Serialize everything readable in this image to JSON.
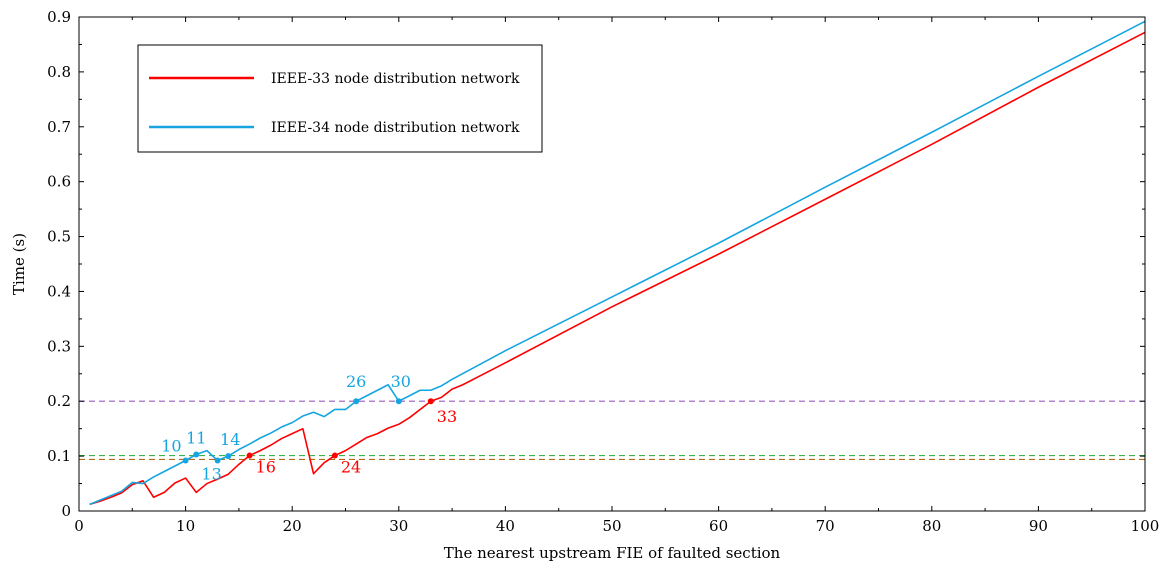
{
  "chart_data": {
    "type": "line",
    "title": "",
    "xlabel": "The nearest upstream FIE of faulted section",
    "ylabel": "Time (s)",
    "xlim": [
      0,
      100
    ],
    "ylim": [
      0,
      0.9
    ],
    "xticks": [
      0,
      10,
      20,
      30,
      40,
      50,
      60,
      70,
      80,
      90,
      100
    ],
    "yticks": [
      0,
      0.1,
      0.2,
      0.3,
      0.4,
      0.5,
      0.6,
      0.7,
      0.8,
      0.9
    ],
    "grid": false,
    "legend_position": "top-left",
    "series": [
      {
        "name": "IEEE-33 node distribution network",
        "color": "#ff0000",
        "points": [
          [
            1,
            0.012
          ],
          [
            2,
            0.018
          ],
          [
            3,
            0.025
          ],
          [
            4,
            0.033
          ],
          [
            5,
            0.048
          ],
          [
            6,
            0.055
          ],
          [
            7,
            0.025
          ],
          [
            8,
            0.034
          ],
          [
            9,
            0.051
          ],
          [
            10,
            0.06
          ],
          [
            11,
            0.034
          ],
          [
            12,
            0.05
          ],
          [
            13,
            0.058
          ],
          [
            14,
            0.067
          ],
          [
            15,
            0.085
          ],
          [
            16,
            0.101
          ],
          [
            17,
            0.11
          ],
          [
            18,
            0.12
          ],
          [
            19,
            0.132
          ],
          [
            20,
            0.141
          ],
          [
            21,
            0.15
          ],
          [
            22,
            0.068
          ],
          [
            23,
            0.088
          ],
          [
            24,
            0.101
          ],
          [
            25,
            0.11
          ],
          [
            26,
            0.122
          ],
          [
            27,
            0.134
          ],
          [
            28,
            0.141
          ],
          [
            29,
            0.151
          ],
          [
            30,
            0.158
          ],
          [
            31,
            0.17
          ],
          [
            32,
            0.185
          ],
          [
            33,
            0.2
          ],
          [
            34,
            0.207
          ],
          [
            35,
            0.222
          ],
          [
            36,
            0.23
          ],
          [
            40,
            0.27
          ],
          [
            50,
            0.372
          ],
          [
            60,
            0.468
          ],
          [
            70,
            0.568
          ],
          [
            80,
            0.668
          ],
          [
            90,
            0.772
          ],
          [
            100,
            0.872
          ]
        ],
        "markers": [
          [
            16,
            0.101,
            "16"
          ],
          [
            24,
            0.101,
            "24"
          ],
          [
            33,
            0.2,
            "33"
          ]
        ]
      },
      {
        "name": "IEEE-34 node distribution network",
        "color": "#16a5e0",
        "points": [
          [
            1,
            0.012
          ],
          [
            2,
            0.02
          ],
          [
            3,
            0.028
          ],
          [
            4,
            0.036
          ],
          [
            5,
            0.052
          ],
          [
            6,
            0.05
          ],
          [
            7,
            0.062
          ],
          [
            8,
            0.072
          ],
          [
            9,
            0.082
          ],
          [
            10,
            0.092
          ],
          [
            11,
            0.103
          ],
          [
            12,
            0.11
          ],
          [
            13,
            0.092
          ],
          [
            14,
            0.1
          ],
          [
            15,
            0.112
          ],
          [
            16,
            0.122
          ],
          [
            17,
            0.133
          ],
          [
            18,
            0.142
          ],
          [
            19,
            0.153
          ],
          [
            20,
            0.161
          ],
          [
            21,
            0.173
          ],
          [
            22,
            0.18
          ],
          [
            23,
            0.172
          ],
          [
            24,
            0.185
          ],
          [
            25,
            0.185
          ],
          [
            26,
            0.2
          ],
          [
            27,
            0.21
          ],
          [
            28,
            0.22
          ],
          [
            29,
            0.23
          ],
          [
            30,
            0.2
          ],
          [
            31,
            0.21
          ],
          [
            32,
            0.22
          ],
          [
            33,
            0.22
          ],
          [
            34,
            0.228
          ],
          [
            35,
            0.24
          ],
          [
            40,
            0.292
          ],
          [
            50,
            0.39
          ],
          [
            60,
            0.488
          ],
          [
            70,
            0.59
          ],
          [
            80,
            0.69
          ],
          [
            90,
            0.792
          ],
          [
            100,
            0.892
          ]
        ],
        "markers": [
          [
            10,
            0.092,
            "10"
          ],
          [
            11,
            0.103,
            "11"
          ],
          [
            13,
            0.092,
            "13"
          ],
          [
            14,
            0.1,
            "14"
          ],
          [
            26,
            0.2,
            "26"
          ],
          [
            30,
            0.2,
            "30"
          ]
        ]
      }
    ],
    "reference_lines": [
      {
        "y": 0.2,
        "color": "#9a5fbf"
      },
      {
        "y": 0.101,
        "color": "#3cb34a"
      },
      {
        "y": 0.094,
        "color": "#b26a1a"
      }
    ]
  }
}
